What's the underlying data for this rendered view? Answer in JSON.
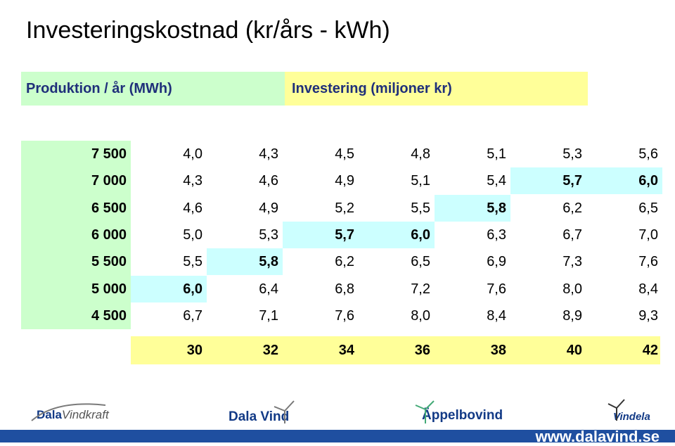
{
  "title": "Investeringskostnad (kr/års - kWh)",
  "header": {
    "production_label": "Produktion / år (MWh)",
    "investment_label": "Investering (miljoner kr)"
  },
  "rows": [
    {
      "label": "7 500",
      "values": [
        "4,0",
        "4,3",
        "4,5",
        "4,8",
        "5,1",
        "5,3",
        "5,6"
      ],
      "highlight": null
    },
    {
      "label": "7 000",
      "values": [
        "4,3",
        "4,6",
        "4,9",
        "5,1",
        "5,4",
        "5,7",
        "6,0"
      ],
      "highlight": [
        5,
        6
      ]
    },
    {
      "label": "6 500",
      "values": [
        "4,6",
        "4,9",
        "5,2",
        "5,5",
        "5,8",
        "6,2",
        "6,5"
      ],
      "highlight": [
        4
      ]
    },
    {
      "label": "6 000",
      "values": [
        "5,0",
        "5,3",
        "5,7",
        "6,0",
        "6,3",
        "6,7",
        "7,0"
      ],
      "highlight": [
        2,
        3
      ]
    },
    {
      "label": "5 500",
      "values": [
        "5,5",
        "5,8",
        "6,2",
        "6,5",
        "6,9",
        "7,3",
        "7,6"
      ],
      "highlight": [
        1
      ]
    },
    {
      "label": "5 000",
      "values": [
        "6,0",
        "6,4",
        "6,8",
        "7,2",
        "7,6",
        "8,0",
        "8,4"
      ],
      "highlight": [
        0
      ]
    },
    {
      "label": "4 500",
      "values": [
        "6,7",
        "7,1",
        "7,6",
        "8,0",
        "8,4",
        "8,9",
        "9,3"
      ],
      "highlight": null
    }
  ],
  "investments": [
    "30",
    "32",
    "34",
    "36",
    "38",
    "40",
    "42"
  ],
  "logos": {
    "dala_vindkraft_a": "Dala",
    "dala_vindkraft_b": "Vindkraft",
    "dala_vind_a": "Dala",
    "dala_vind_b": "Vind",
    "appelbo": "Äppelbovind",
    "vindela": "Vindela"
  },
  "url": "www.dalavind.se",
  "colors": {
    "green": "#ccffcc",
    "yellow": "#ffff99",
    "cyan": "#ccffff",
    "brand_blue": "#1f4fa0"
  }
}
